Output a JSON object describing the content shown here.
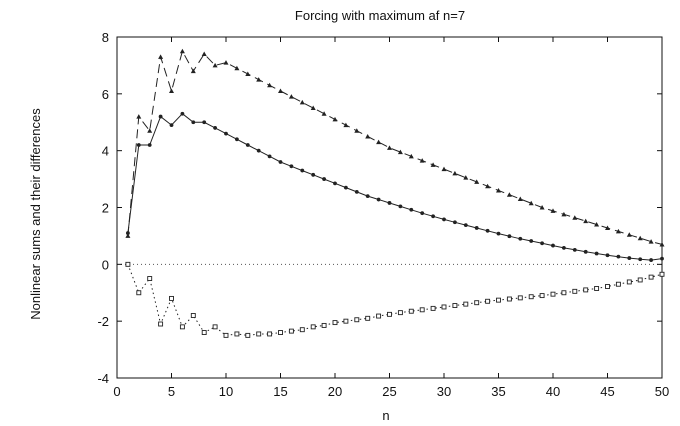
{
  "chart_data": {
    "type": "line",
    "title": "Forcing with maximum af n=7",
    "xlabel": "n",
    "ylabel": "Nonlinear sums and their differences",
    "xlim": [
      0,
      50
    ],
    "ylim": [
      -4,
      8
    ],
    "xticks": [
      0,
      5,
      10,
      15,
      20,
      25,
      30,
      35,
      40,
      45,
      50
    ],
    "yticks": [
      -4,
      -2,
      0,
      2,
      4,
      6,
      8
    ],
    "grid": false,
    "legend": "none",
    "colors": {
      "line": "#222222",
      "zero_line": "#555555"
    },
    "series": [
      {
        "marker": "triangle",
        "style": "dashed",
        "x": [
          1,
          2,
          3,
          4,
          5,
          6,
          7,
          8,
          9,
          10,
          11,
          12,
          13,
          14,
          15,
          16,
          17,
          18,
          19,
          20,
          21,
          22,
          23,
          24,
          25,
          26,
          27,
          28,
          29,
          30,
          31,
          32,
          33,
          34,
          35,
          36,
          37,
          38,
          39,
          40,
          41,
          42,
          43,
          44,
          45,
          46,
          47,
          48,
          49,
          50
        ],
        "values": [
          1.0,
          5.2,
          4.7,
          7.3,
          6.1,
          7.5,
          6.8,
          7.4,
          7.0,
          7.1,
          6.9,
          6.7,
          6.5,
          6.3,
          6.1,
          5.9,
          5.7,
          5.5,
          5.3,
          5.1,
          4.9,
          4.7,
          4.5,
          4.3,
          4.1,
          3.95,
          3.8,
          3.65,
          3.5,
          3.35,
          3.2,
          3.05,
          2.9,
          2.75,
          2.6,
          2.45,
          2.3,
          2.15,
          2.0,
          1.88,
          1.76,
          1.64,
          1.52,
          1.4,
          1.28,
          1.16,
          1.04,
          0.92,
          0.8,
          0.7
        ]
      },
      {
        "marker": "circle",
        "style": "solid",
        "x": [
          1,
          2,
          3,
          4,
          5,
          6,
          7,
          8,
          9,
          10,
          11,
          12,
          13,
          14,
          15,
          16,
          17,
          18,
          19,
          20,
          21,
          22,
          23,
          24,
          25,
          26,
          27,
          28,
          29,
          30,
          31,
          32,
          33,
          34,
          35,
          36,
          37,
          38,
          39,
          40,
          41,
          42,
          43,
          44,
          45,
          46,
          47,
          48,
          49,
          50
        ],
        "values": [
          1.1,
          4.2,
          4.2,
          5.2,
          4.9,
          5.3,
          5.0,
          5.0,
          4.8,
          4.6,
          4.4,
          4.2,
          4.0,
          3.8,
          3.6,
          3.45,
          3.3,
          3.15,
          3.0,
          2.85,
          2.7,
          2.55,
          2.4,
          2.28,
          2.16,
          2.04,
          1.92,
          1.8,
          1.69,
          1.58,
          1.48,
          1.38,
          1.28,
          1.18,
          1.08,
          0.99,
          0.9,
          0.82,
          0.74,
          0.66,
          0.58,
          0.51,
          0.44,
          0.38,
          0.32,
          0.27,
          0.22,
          0.18,
          0.15,
          0.2
        ]
      },
      {
        "marker": "square",
        "style": "dotted",
        "x": [
          1,
          2,
          3,
          4,
          5,
          6,
          7,
          8,
          9,
          10,
          11,
          12,
          13,
          14,
          15,
          16,
          17,
          18,
          19,
          20,
          21,
          22,
          23,
          24,
          25,
          26,
          27,
          28,
          29,
          30,
          31,
          32,
          33,
          34,
          35,
          36,
          37,
          38,
          39,
          40,
          41,
          42,
          43,
          44,
          45,
          46,
          47,
          48,
          49,
          50
        ],
        "values": [
          0.0,
          -1.0,
          -0.5,
          -2.1,
          -1.2,
          -2.2,
          -1.8,
          -2.4,
          -2.2,
          -2.5,
          -2.45,
          -2.5,
          -2.45,
          -2.45,
          -2.4,
          -2.35,
          -2.3,
          -2.2,
          -2.15,
          -2.05,
          -2.0,
          -1.95,
          -1.9,
          -1.82,
          -1.76,
          -1.7,
          -1.65,
          -1.6,
          -1.55,
          -1.5,
          -1.45,
          -1.4,
          -1.35,
          -1.3,
          -1.26,
          -1.22,
          -1.18,
          -1.14,
          -1.1,
          -1.05,
          -1.0,
          -0.95,
          -0.9,
          -0.85,
          -0.78,
          -0.7,
          -0.62,
          -0.55,
          -0.45,
          -0.35
        ]
      }
    ]
  }
}
